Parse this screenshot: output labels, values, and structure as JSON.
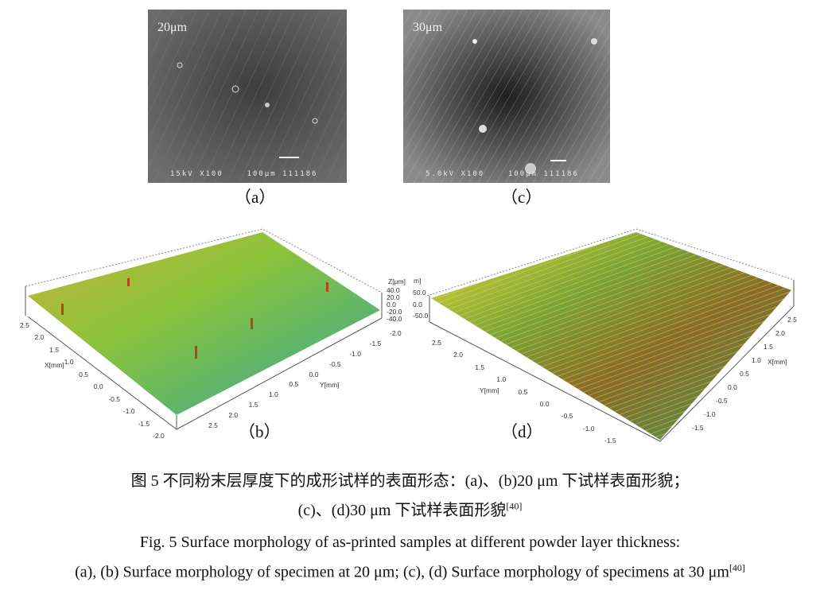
{
  "panels": {
    "a": {
      "label": "（a）",
      "scale_text": "20μm",
      "footer": "15kV X100    100μm 111186"
    },
    "c": {
      "label": "（c）",
      "scale_text": "30μm",
      "footer": "5.0kV X100    100μm 111186"
    },
    "b": {
      "label": "（b）",
      "z_title": "Z[μm]",
      "z_ticks": [
        "40.0",
        "20.0",
        "0.0",
        "-20.0",
        "-40.0"
      ],
      "x_title": "X[mm]",
      "x_ticks": [
        "2.5",
        "2.0",
        "1.5",
        "1.0",
        "0.5",
        "0.0",
        "-0.5",
        "-1.0",
        "-1.5",
        "-2.0"
      ],
      "y_title": "Y[mm]",
      "y_ticks": [
        "-2.0",
        "-1.5",
        "-1.0",
        "-0.5",
        "0.0",
        "0.5",
        "1.0",
        "1.5",
        "2.0",
        "2.5"
      ]
    },
    "d": {
      "label": "（d）",
      "z_title": "m]",
      "z_ticks": [
        "50.0",
        "0.0",
        "-50.0"
      ],
      "y_title": "Y[mm]",
      "y_ticks": [
        "2.5",
        "2.0",
        "1.5",
        "1.0",
        "0.5",
        "0.0",
        "-0.5",
        "-1.0",
        "-1.5"
      ],
      "x_title": "X[mm]",
      "x_ticks": [
        "2.5",
        "2.0",
        "1.5",
        "1.0",
        "0.5",
        "0.0",
        "-0.5",
        "-1.0",
        "-1.5"
      ]
    }
  },
  "caption": {
    "cn_line1": "图 5  不同粉末层厚度下的成形试样的表面形态：(a)、(b)20 μm 下试样表面形貌；",
    "cn_line2": "(c)、(d)30 μm 下试样表面形貌",
    "cn_ref": "[40]",
    "en_line1": "Fig. 5 Surface morphology of as-printed samples at different powder layer thickness:",
    "en_line2": "(a), (b) Surface morphology of specimen at 20 μm; (c), (d) Surface morphology of specimens at 30 μm",
    "en_ref": "[40]"
  },
  "colors": {
    "surface_low": "#2aa6c8",
    "surface_mid": "#8cc43a",
    "surface_high": "#b5441a",
    "sem_gray": "#5a5a5a"
  }
}
